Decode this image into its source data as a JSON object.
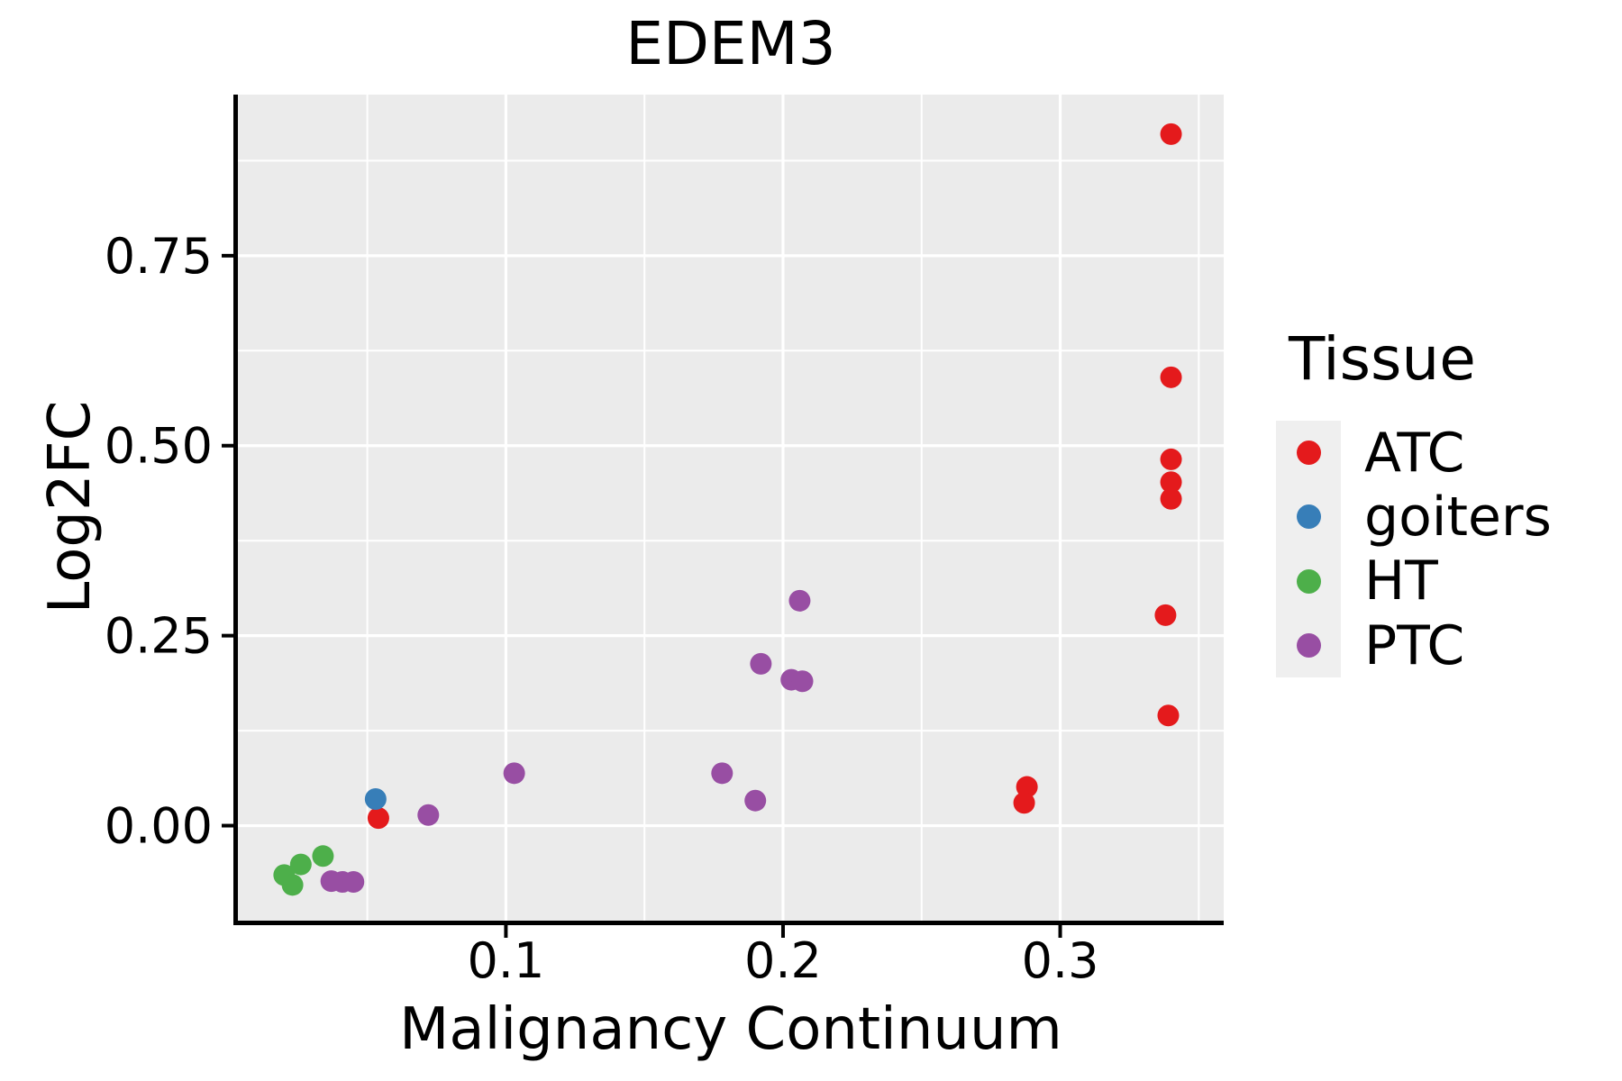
{
  "chart_data": {
    "type": "scatter",
    "title": "EDEM3",
    "xlabel": "Malignancy Continuum",
    "ylabel": "Log2FC",
    "legend_title": "Tissue",
    "legend_position": "right",
    "panel_background": "#EBEBEB",
    "legend_key_background": "#EFEFEF",
    "gridline_color": "#FFFFFF",
    "axis_color": "#000000",
    "grid": "major+minor",
    "xlim": [
      0.0033,
      0.359
    ],
    "ylim": [
      -0.125,
      0.962
    ],
    "xticks": {
      "major": [
        0.1,
        0.2,
        0.3
      ],
      "labels": [
        "0.1",
        "0.2",
        "0.3"
      ],
      "minor": [
        0.05,
        0.15,
        0.25,
        0.35
      ]
    },
    "yticks": {
      "major": [
        0.0,
        0.25,
        0.5,
        0.75
      ],
      "labels": [
        "0.00",
        "0.25",
        "0.50",
        "0.75"
      ],
      "minor": [
        0.125,
        0.375,
        0.625,
        0.875
      ]
    },
    "series": [
      {
        "name": "ATC",
        "color": "#E41A1C",
        "points": [
          [
            0.34,
            0.91
          ],
          [
            0.34,
            0.59
          ],
          [
            0.34,
            0.482
          ],
          [
            0.34,
            0.452
          ],
          [
            0.34,
            0.43
          ],
          [
            0.338,
            0.277
          ],
          [
            0.339,
            0.145
          ],
          [
            0.288,
            0.051
          ],
          [
            0.287,
            0.03
          ],
          [
            0.054,
            0.01
          ]
        ]
      },
      {
        "name": "goiters",
        "color": "#377EB8",
        "points": [
          [
            0.053,
            0.035
          ]
        ]
      },
      {
        "name": "HT",
        "color": "#4DAF4A",
        "points": [
          [
            0.034,
            -0.04
          ],
          [
            0.026,
            -0.051
          ],
          [
            0.02,
            -0.065
          ],
          [
            0.023,
            -0.078
          ]
        ]
      },
      {
        "name": "PTC",
        "color": "#984EA3",
        "points": [
          [
            0.206,
            0.296
          ],
          [
            0.192,
            0.213
          ],
          [
            0.203,
            0.192
          ],
          [
            0.207,
            0.19
          ],
          [
            0.178,
            0.069
          ],
          [
            0.103,
            0.069
          ],
          [
            0.19,
            0.033
          ],
          [
            0.072,
            0.014
          ],
          [
            0.037,
            -0.073
          ],
          [
            0.041,
            -0.074
          ],
          [
            0.045,
            -0.074
          ]
        ]
      }
    ]
  }
}
